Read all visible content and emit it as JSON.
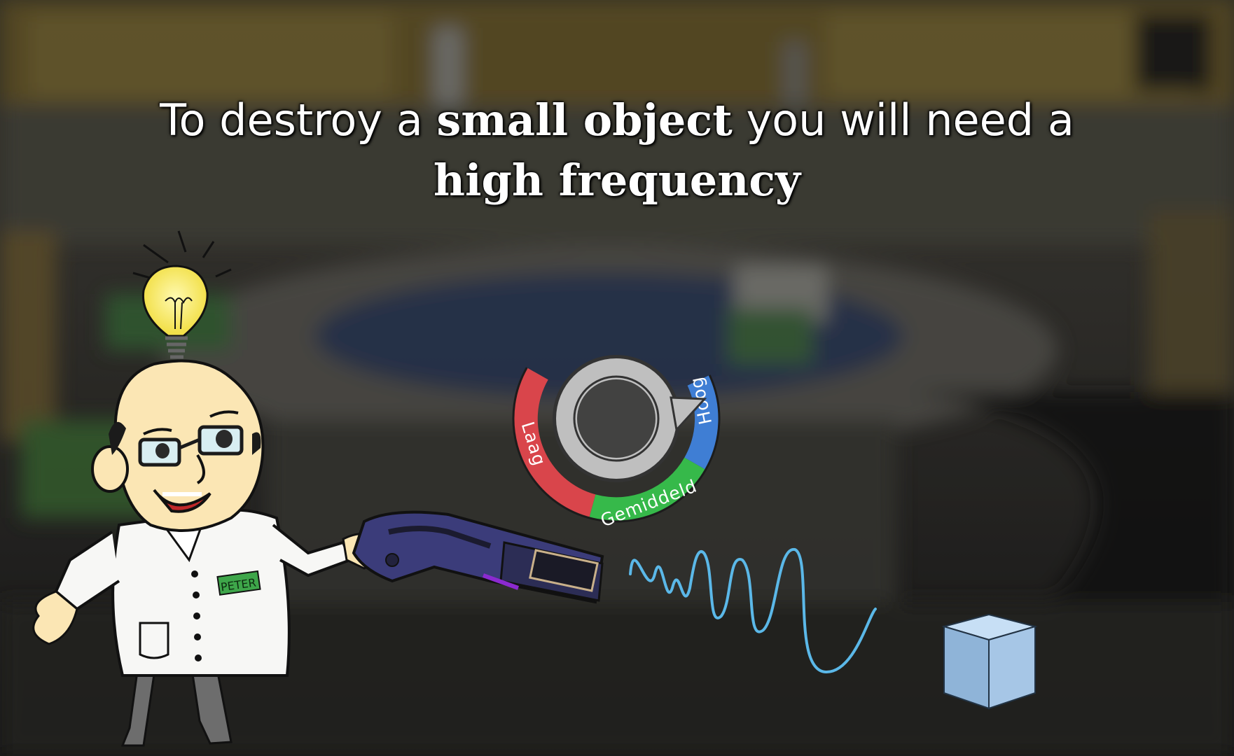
{
  "tutorial": {
    "line1_before": "To destroy a ",
    "line1_em": "small object",
    "line1_after": " you will need a",
    "line2_em": "high frequency"
  },
  "dial": {
    "low_label": "Laag",
    "mid_label": "Gemiddeld",
    "high_label": "Hoog",
    "colors": {
      "low": "#d9454b",
      "mid": "#36b94a",
      "high": "#3f7ed4"
    }
  },
  "character": {
    "badge_text": "PETER"
  },
  "icons": [
    "light-bulb-icon",
    "frequency-gun",
    "wave",
    "cube"
  ]
}
